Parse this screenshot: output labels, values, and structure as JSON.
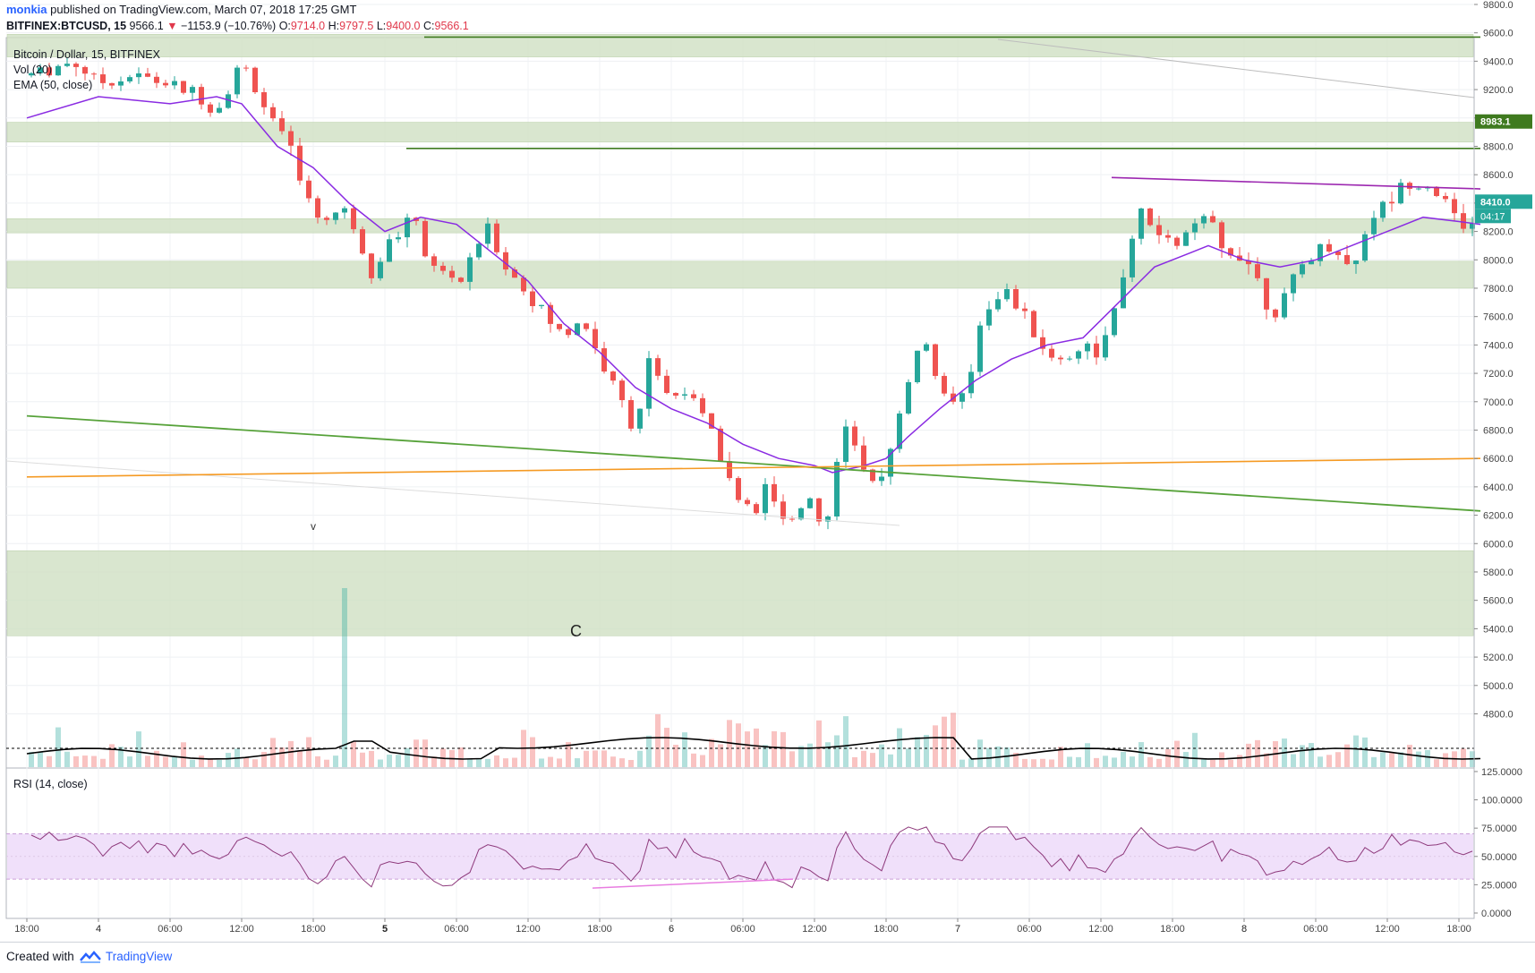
{
  "header": {
    "user": "monkia",
    "published": "published on TradingView.com, March 07, 2018 17:25 GMT",
    "symbol": "BITFINEX:BTCUSD, 15",
    "last": "9566.1",
    "arrow": "▼",
    "change": "−1153.9 (−10.76%)",
    "o_label": "O:",
    "o_val": "9714.0",
    "h_label": "H:",
    "h_val": "9797.5",
    "l_label": "L:",
    "l_val": "9400.0",
    "c_label": "C:",
    "c_val": "9566.1"
  },
  "panes": {
    "main_title": "Bitcoin / Dollar, 15, BITFINEX",
    "vol_label": "Vol (20)",
    "ema_label": "EMA (50, close)",
    "rsi_label": "RSI (14, close)",
    "annotation_v": "v",
    "annotation_c": "C"
  },
  "price_axis": {
    "ticks": [
      "9800.0",
      "9600.0",
      "9400.0",
      "9200.0",
      "9000.0",
      "8800.0",
      "8600.0",
      "8400.0",
      "8200.0",
      "8000.0",
      "7800.0",
      "7600.0",
      "7400.0",
      "7200.0",
      "7000.0",
      "6800.0",
      "6600.0",
      "6400.0",
      "6200.0",
      "6000.0",
      "5800.0",
      "5600.0",
      "5400.0",
      "5200.0",
      "5000.0",
      "4800.0"
    ],
    "price_label_1": "8983.1",
    "price_label_2": "8410.0",
    "countdown": "04:17"
  },
  "rsi_axis": {
    "ticks": [
      "125.0000",
      "100.0000",
      "75.0000",
      "50.0000",
      "25.0000",
      "0.0000"
    ]
  },
  "time_axis": {
    "ticks": [
      "18:00",
      "4",
      "06:00",
      "12:00",
      "18:00",
      "5",
      "06:00",
      "12:00",
      "18:00",
      "6",
      "06:00",
      "12:00",
      "18:00",
      "7",
      "06:00",
      "12:00",
      "18:00",
      "8",
      "06:00",
      "12:00",
      "18:00"
    ]
  },
  "footer": {
    "created": "Created with",
    "brand": "TradingView"
  },
  "colors": {
    "up": "#26a69a",
    "down": "#ef5350",
    "zone": "#cfe0c3",
    "ema": "#8a2be2",
    "trend_green": "#57a23a",
    "trend_orange": "#f59a23",
    "resistance_purple": "#9c27b0",
    "level_dark_green": "#3f7a1f",
    "rsi_band": "#f0e0fa",
    "rsi_line": "#8e3a7c"
  },
  "chart_data": {
    "type": "candlestick",
    "title": "Bitcoin / Dollar, 15, BITFINEX",
    "y_range": [
      4700,
      9900
    ],
    "indicators": [
      "Vol (20)",
      "EMA (50, close)",
      "RSI (14, close)"
    ],
    "price_path": [
      [
        0,
        9300
      ],
      [
        1.3,
        9400
      ],
      [
        2,
        9250
      ],
      [
        3,
        9300
      ],
      [
        3.7,
        9250
      ],
      [
        4.5,
        9200
      ],
      [
        5.3,
        9050
      ],
      [
        6,
        9400
      ],
      [
        6.8,
        9000
      ],
      [
        7.5,
        8700
      ],
      [
        8,
        8300
      ],
      [
        9,
        8350
      ],
      [
        9.6,
        7900
      ],
      [
        10,
        8100
      ],
      [
        10.9,
        8300
      ],
      [
        11.2,
        7950
      ],
      [
        12.2,
        7850
      ],
      [
        12.8,
        8250
      ],
      [
        13.4,
        7950
      ],
      [
        14,
        7750
      ],
      [
        15,
        7450
      ],
      [
        15.5,
        7600
      ],
      [
        16,
        7300
      ],
      [
        17,
        6800
      ],
      [
        17.4,
        7350
      ],
      [
        18,
        7000
      ],
      [
        18.4,
        7100
      ],
      [
        19,
        6850
      ],
      [
        19.6,
        6450
      ],
      [
        20.3,
        6150
      ],
      [
        20.6,
        6450
      ],
      [
        21.2,
        6100
      ],
      [
        21.8,
        6350
      ],
      [
        22.3,
        6050
      ],
      [
        22.8,
        6900
      ],
      [
        23.4,
        6450
      ],
      [
        23.8,
        6350
      ],
      [
        24.3,
        6900
      ],
      [
        25,
        7450
      ],
      [
        25.5,
        7100
      ],
      [
        26.2,
        7000
      ],
      [
        26.7,
        7650
      ],
      [
        27.3,
        7800
      ],
      [
        28,
        7550
      ],
      [
        28.6,
        7300
      ],
      [
        29,
        7300
      ],
      [
        29.5,
        7400
      ],
      [
        30,
        7350
      ],
      [
        30.6,
        7800
      ],
      [
        31,
        8350
      ],
      [
        31.5,
        8200
      ],
      [
        32,
        8100
      ],
      [
        32.5,
        8200
      ],
      [
        33,
        8300
      ],
      [
        33.4,
        8050
      ],
      [
        34,
        8050
      ],
      [
        34.4,
        7850
      ],
      [
        34.8,
        7600
      ],
      [
        35.3,
        7800
      ],
      [
        35.7,
        8000
      ],
      [
        36.3,
        8100
      ],
      [
        36.7,
        8050
      ],
      [
        37,
        7900
      ],
      [
        37.5,
        8300
      ],
      [
        38,
        8400
      ],
      [
        38.5,
        8550
      ],
      [
        39,
        8550
      ],
      [
        39.5,
        8450
      ],
      [
        40,
        8250
      ],
      [
        40.4,
        8250
      ],
      [
        40.6,
        8350
      ]
    ],
    "ema_path": [
      [
        0,
        9000
      ],
      [
        2,
        9150
      ],
      [
        4,
        9100
      ],
      [
        5.3,
        9150
      ],
      [
        6,
        9100
      ],
      [
        7,
        8800
      ],
      [
        8,
        8650
      ],
      [
        9,
        8400
      ],
      [
        10,
        8200
      ],
      [
        11,
        8300
      ],
      [
        12,
        8250
      ],
      [
        13,
        8050
      ],
      [
        14,
        7850
      ],
      [
        15,
        7550
      ],
      [
        16,
        7350
      ],
      [
        17,
        7100
      ],
      [
        18,
        6950
      ],
      [
        19,
        6850
      ],
      [
        20,
        6700
      ],
      [
        21,
        6600
      ],
      [
        22,
        6550
      ],
      [
        22.5,
        6500
      ],
      [
        23.4,
        6550
      ],
      [
        24,
        6600
      ],
      [
        24.6,
        6750
      ],
      [
        25.5,
        6950
      ],
      [
        26.5,
        7150
      ],
      [
        27.5,
        7300
      ],
      [
        28.5,
        7400
      ],
      [
        29.5,
        7450
      ],
      [
        30.5,
        7700
      ],
      [
        31.5,
        7950
      ],
      [
        32.5,
        8050
      ],
      [
        33,
        8100
      ],
      [
        34,
        8000
      ],
      [
        35,
        7950
      ],
      [
        36,
        8000
      ],
      [
        37,
        8100
      ],
      [
        38,
        8200
      ],
      [
        39,
        8300
      ],
      [
        40,
        8270
      ],
      [
        40.6,
        8250
      ]
    ],
    "zones": [
      [
        9430,
        9590
      ],
      [
        8830,
        8970
      ],
      [
        8190,
        8290
      ],
      [
        7800,
        7990
      ],
      [
        5350,
        5950
      ]
    ],
    "levels": [
      {
        "from_h": 11.1,
        "to_h": 40.6,
        "price": 9570
      },
      {
        "from_h": 10.6,
        "to_h": 40.6,
        "price": 8785
      }
    ],
    "trendlines": {
      "green": [
        [
          0,
          6900
        ],
        [
          40.6,
          6230
        ]
      ],
      "orange": [
        [
          0,
          6470
        ],
        [
          40.6,
          6600
        ]
      ],
      "purple": [
        [
          30.3,
          8580
        ],
        [
          40.6,
          8500
        ]
      ]
    },
    "rsi_band": [
      30,
      70
    ],
    "rsi_y_range": [
      -10,
      130
    ],
    "rsi_bullish_divergence": [
      [
        15.8,
        22
      ],
      [
        21.4,
        30
      ]
    ]
  }
}
